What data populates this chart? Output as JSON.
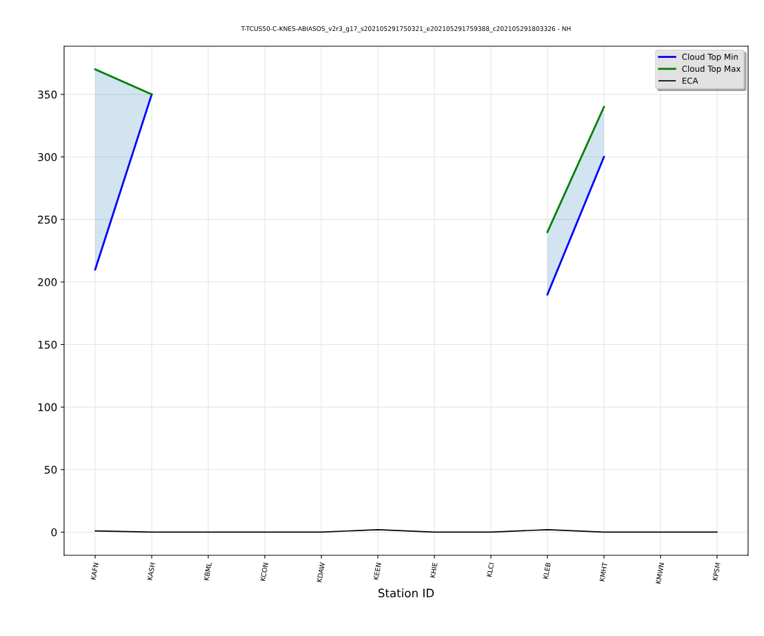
{
  "chart_data": {
    "type": "line",
    "title": "T-TCUS50-C-KNES-ABIASOS_v2r3_g17_s202105291750321_e202105291759388_c202105291803326 - NH",
    "xlabel": "Station ID",
    "categories": [
      "KAFN",
      "KASH",
      "KBML",
      "KCON",
      "KDAW",
      "KEEN",
      "KHIE",
      "KLCI",
      "KLEB",
      "KMHT",
      "KMWN",
      "KPSM"
    ],
    "series": [
      {
        "name": "Cloud Top Min",
        "color": "#0000ff",
        "values": [
          210,
          350,
          null,
          null,
          null,
          null,
          null,
          null,
          190,
          300,
          null,
          null
        ]
      },
      {
        "name": "Cloud Top Max",
        "color": "#008000",
        "values": [
          370,
          350,
          null,
          null,
          null,
          null,
          null,
          null,
          240,
          340,
          null,
          null
        ],
        "lower": [
          210,
          350,
          null,
          null,
          null,
          null,
          null,
          null,
          190,
          300,
          null,
          null
        ],
        "upper": [
          370,
          350,
          null,
          null,
          null,
          null,
          null,
          null,
          240,
          340,
          null,
          null
        ]
      },
      {
        "name": "ECA",
        "color": "#000000",
        "values": [
          1,
          0,
          0,
          0,
          0,
          2,
          0,
          0,
          2,
          0,
          0,
          0
        ]
      }
    ],
    "ylim": [
      -18.5,
      388.5
    ],
    "yticks": [
      0,
      50,
      100,
      150,
      200,
      250,
      300,
      350
    ],
    "grid": true,
    "legend": "top right",
    "marker": "none",
    "line_style": "solid"
  }
}
